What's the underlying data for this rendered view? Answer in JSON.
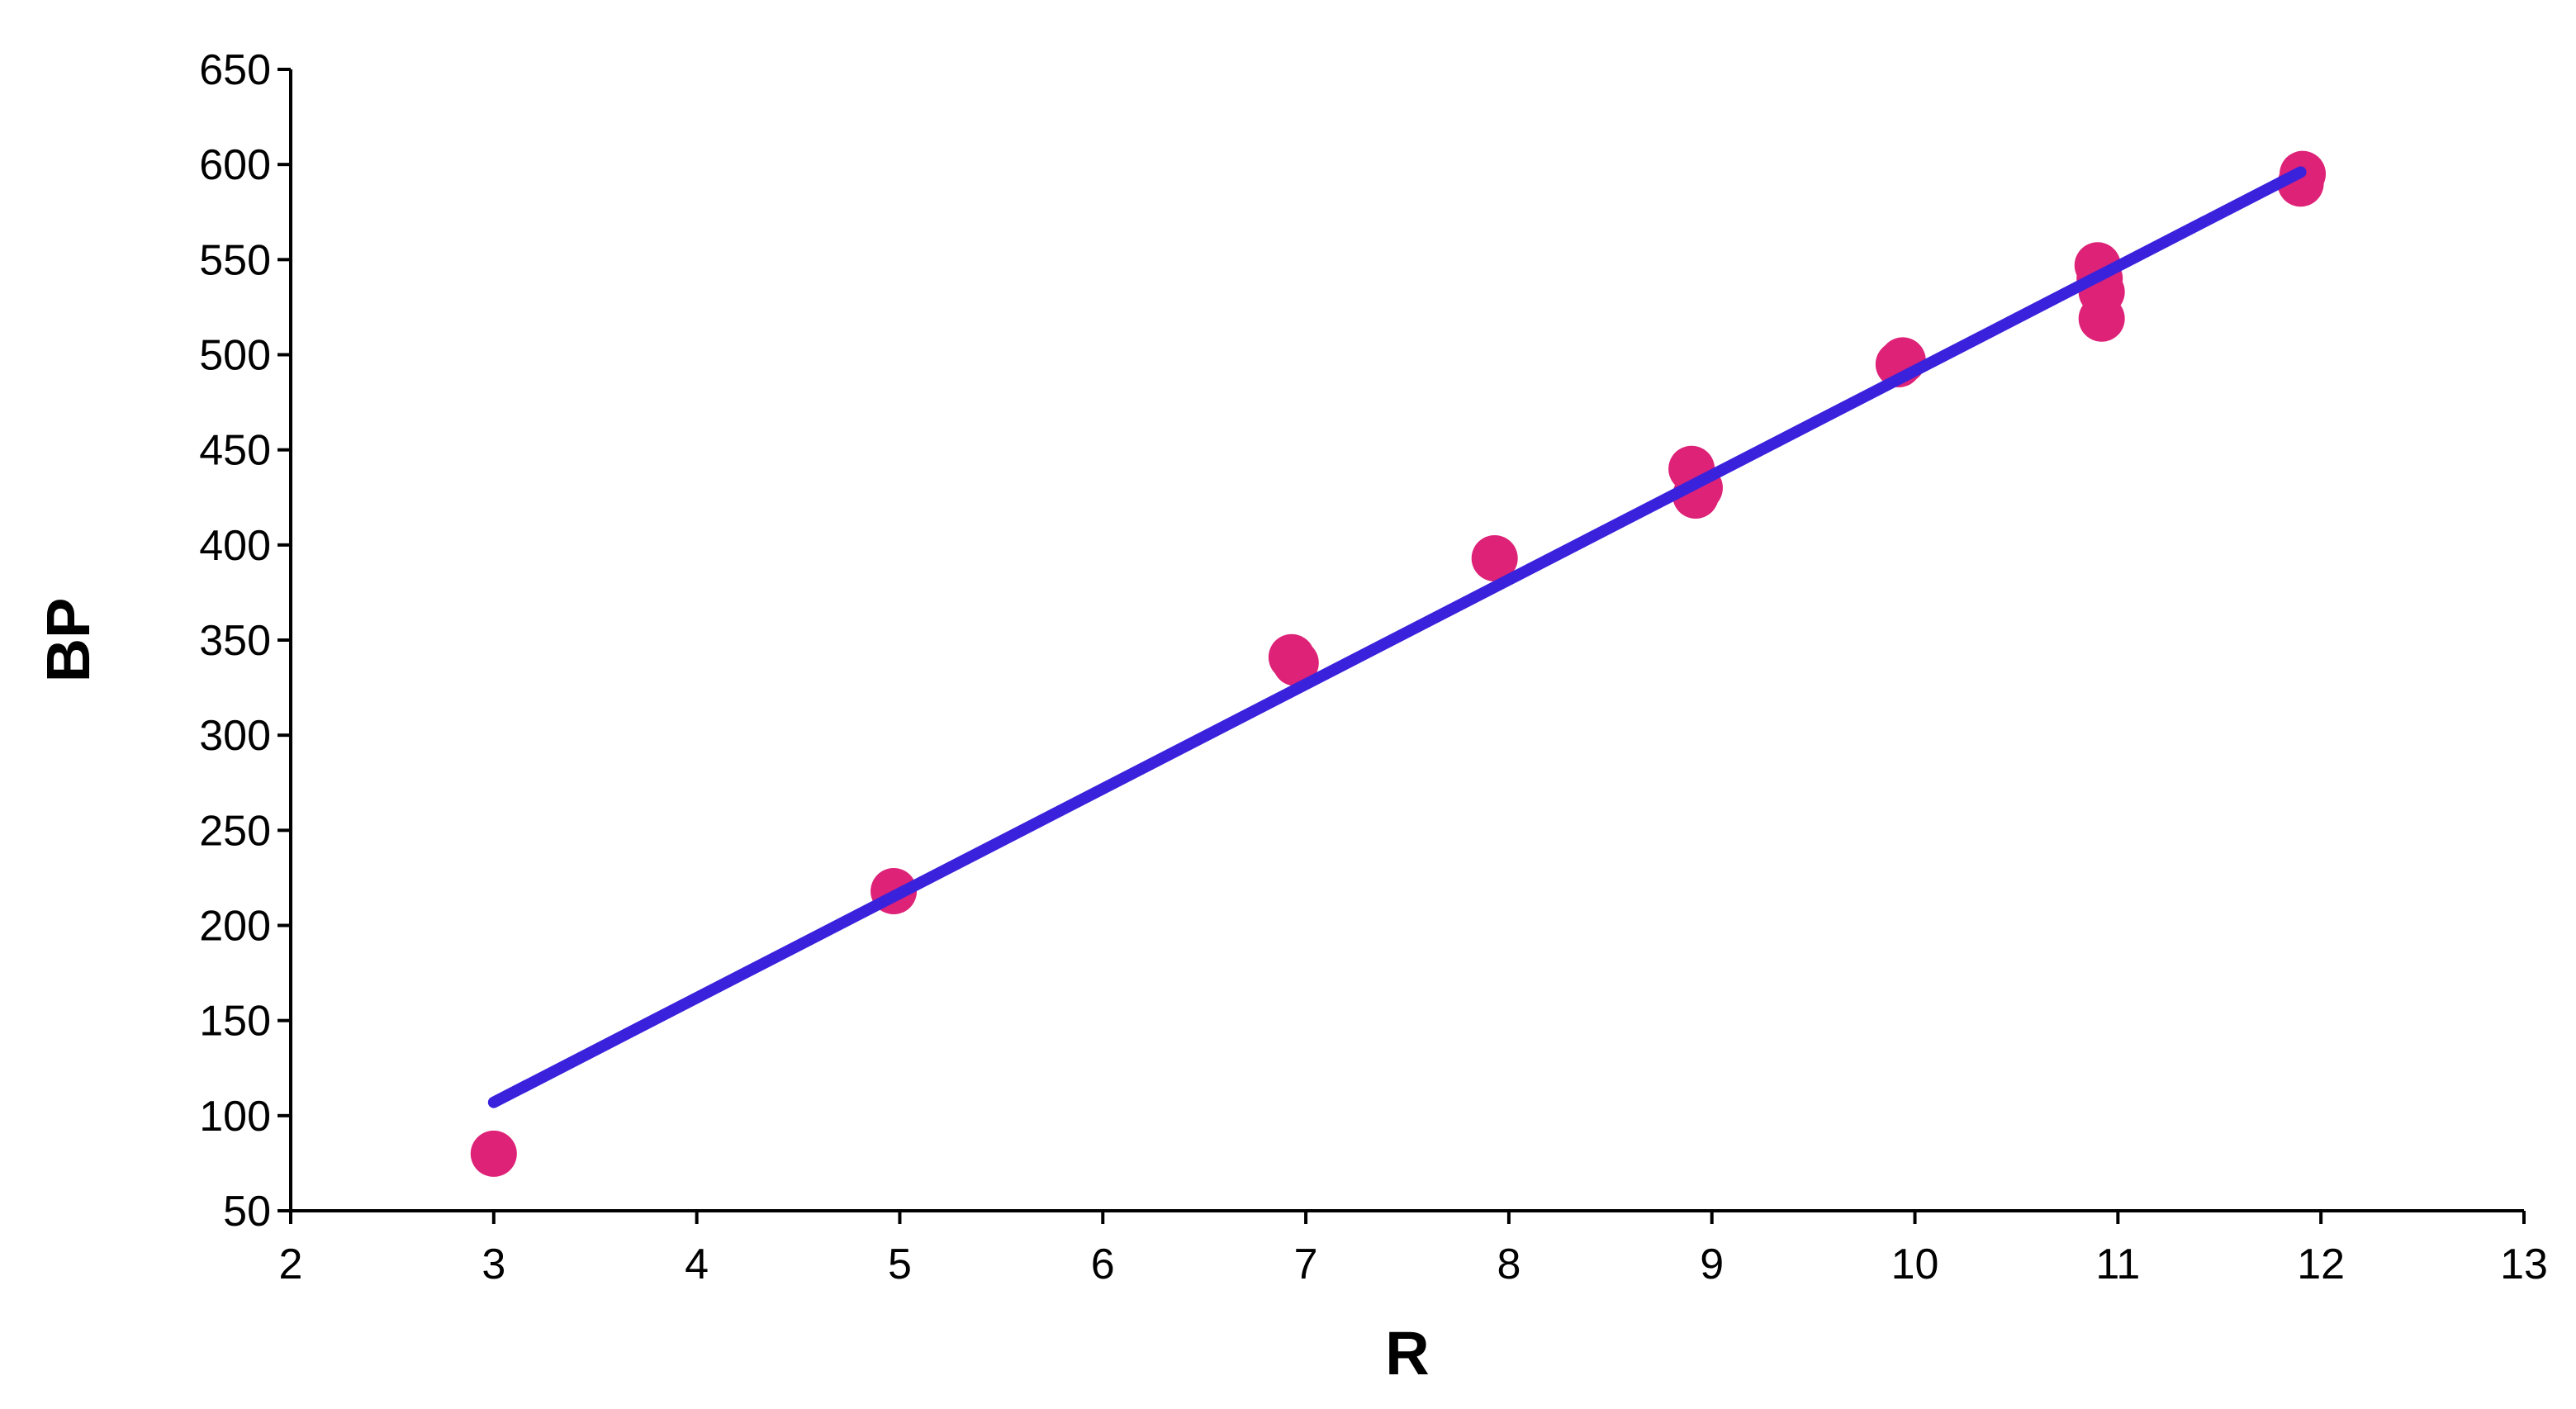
{
  "chart_data": {
    "type": "scatter",
    "title": "",
    "xlabel": "R",
    "ylabel": "BP",
    "xlim": [
      2,
      13
    ],
    "ylim": [
      50,
      650
    ],
    "x_ticks": [
      "2",
      "3",
      "4",
      "5",
      "6",
      "7",
      "8",
      "9",
      "10",
      "11",
      "12",
      "13"
    ],
    "y_ticks": [
      "50",
      "100",
      "150",
      "200",
      "250",
      "300",
      "350",
      "400",
      "450",
      "500",
      "550",
      "600",
      "650"
    ],
    "grid": false,
    "legend": "none",
    "points": [
      {
        "x": 3.0,
        "y": 80
      },
      {
        "x": 4.97,
        "y": 218
      },
      {
        "x": 6.93,
        "y": 341
      },
      {
        "x": 6.95,
        "y": 338
      },
      {
        "x": 7.93,
        "y": 393
      },
      {
        "x": 8.9,
        "y": 440
      },
      {
        "x": 8.92,
        "y": 426
      },
      {
        "x": 8.94,
        "y": 430
      },
      {
        "x": 9.92,
        "y": 495
      },
      {
        "x": 9.94,
        "y": 497
      },
      {
        "x": 10.9,
        "y": 547
      },
      {
        "x": 10.91,
        "y": 540
      },
      {
        "x": 10.92,
        "y": 533
      },
      {
        "x": 10.92,
        "y": 519
      },
      {
        "x": 11.9,
        "y": 590
      },
      {
        "x": 11.91,
        "y": 595
      }
    ],
    "trendline": {
      "x": [
        3.0,
        11.9
      ],
      "y": [
        107,
        596
      ]
    },
    "colors": {
      "points": "#dd2277",
      "trendline": "#3a22dd",
      "axes": "#000000"
    }
  }
}
